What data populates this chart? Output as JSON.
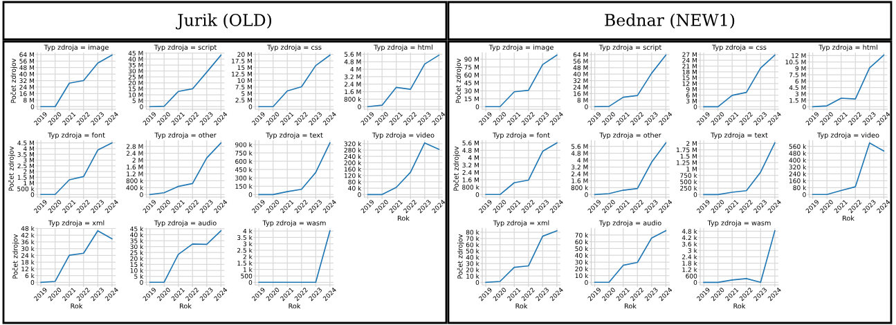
{
  "chart_data": [
    {
      "type": "other",
      "title": "Jurik (OLD)"
    },
    {
      "type": "line",
      "title": "Typ zdroja = image",
      "ylabel": "Počet zdrojov",
      "categories": [
        "2019",
        "2020",
        "2021",
        "2022",
        "2023",
        "2024"
      ],
      "series": [
        {
          "color": "#1f77b4",
          "values": [
            0,
            0,
            28800000,
            32000000,
            53400000,
            63300000
          ]
        }
      ],
      "ylim": [
        -3200000,
        66400000
      ],
      "yticks": [
        0,
        {
          "value": 8000000,
          "label": "8 M"
        },
        {
          "value": 16000000,
          "label": "16 M"
        },
        {
          "value": 24000000,
          "label": "24 M"
        },
        {
          "value": 32000000,
          "label": "32 M"
        },
        {
          "value": 40000000,
          "label": "40 M"
        },
        {
          "value": 48000000,
          "label": "48 M"
        },
        {
          "value": 56000000,
          "label": "56 M"
        },
        {
          "value": 64000000,
          "label": "64 M"
        }
      ],
      "grid": true
    },
    {
      "type": "line",
      "title": "Typ zdroja = script",
      "categories": [
        "2019",
        "2020",
        "2021",
        "2022",
        "2023",
        "2024"
      ],
      "series": [
        {
          "color": "#1f77b4",
          "values": [
            0,
            300000,
            12800000,
            15000000,
            29000000,
            43300000
          ]
        }
      ],
      "ylim": [
        -2200000,
        45500000
      ],
      "yticks": [
        0,
        {
          "value": 5000000,
          "label": "5 M"
        },
        {
          "value": 10000000,
          "label": "10 M"
        },
        {
          "value": 15000000,
          "label": "15 M"
        },
        {
          "value": 20000000,
          "label": "20 M"
        },
        {
          "value": 25000000,
          "label": "25 M"
        },
        {
          "value": 30000000,
          "label": "30 M"
        },
        {
          "value": 35000000,
          "label": "35 M"
        },
        {
          "value": 40000000,
          "label": "40 M"
        },
        {
          "value": 45000000,
          "label": "45 M"
        }
      ],
      "grid": true
    },
    {
      "type": "line",
      "title": "Typ zdroja = css",
      "categories": [
        "2019",
        "2020",
        "2021",
        "2022",
        "2023",
        "2024"
      ],
      "series": [
        {
          "color": "#1f77b4",
          "values": [
            0,
            0,
            6000000,
            7600000,
            15700000,
            19700000
          ]
        }
      ],
      "ylim": [
        -1000000,
        20700000
      ],
      "yticks": [
        0,
        {
          "value": 2500000,
          "label": "2.5 M"
        },
        {
          "value": 5000000,
          "label": "5 M"
        },
        {
          "value": 7500000,
          "label": "7.5 M"
        },
        {
          "value": 10000000,
          "label": "10 M"
        },
        {
          "value": 12500000,
          "label": "12.5 M"
        },
        {
          "value": 15000000,
          "label": "15 M"
        },
        {
          "value": 17500000,
          "label": "17.5 M"
        },
        {
          "value": 20000000,
          "label": "20 M"
        }
      ],
      "grid": true
    },
    {
      "type": "line",
      "title": "Typ zdroja = html",
      "categories": [
        "2019",
        "2020",
        "2021",
        "2022",
        "2023",
        "2024"
      ],
      "series": [
        {
          "color": "#1f77b4",
          "values": [
            0,
            150000,
            2060000,
            1850000,
            4550000,
            5500000
          ]
        }
      ],
      "ylim": [
        -280000,
        5780000
      ],
      "yticks": [
        0,
        {
          "value": 800000,
          "label": "800 k"
        },
        {
          "value": 1600000,
          "label": "1.6 M"
        },
        {
          "value": 2400000,
          "label": "2.4 M"
        },
        {
          "value": 3200000,
          "label": "3.2 M"
        },
        {
          "value": 4000000,
          "label": "4 M"
        },
        {
          "value": 4800000,
          "label": "4.8 M"
        },
        {
          "value": 5600000,
          "label": "5.6 M"
        }
      ],
      "grid": true
    },
    {
      "type": "line",
      "title": "Typ zdroja = font",
      "ylabel": "Počet zdrojov",
      "categories": [
        "2019",
        "2020",
        "2021",
        "2022",
        "2023",
        "2024"
      ],
      "series": [
        {
          "color": "#1f77b4",
          "values": [
            0,
            0,
            1280000,
            1560000,
            3870000,
            4500000
          ]
        }
      ],
      "ylim": [
        -225000,
        4720000
      ],
      "yticks": [
        0,
        {
          "value": 500000,
          "label": "500 k"
        },
        {
          "value": 1000000,
          "label": "1 M"
        },
        {
          "value": 1500000,
          "label": "1.5 M"
        },
        {
          "value": 2000000,
          "label": "2 M"
        },
        {
          "value": 2500000,
          "label": "2.5 M"
        },
        {
          "value": 3000000,
          "label": "3 M"
        },
        {
          "value": 3500000,
          "label": "3.5 M"
        },
        {
          "value": 4000000,
          "label": "4 M"
        },
        {
          "value": 4500000,
          "label": "4.5 M"
        }
      ],
      "grid": true
    },
    {
      "type": "line",
      "title": "Typ zdroja = other",
      "categories": [
        "2019",
        "2020",
        "2021",
        "2022",
        "2023",
        "2024"
      ],
      "series": [
        {
          "color": "#1f77b4",
          "values": [
            0,
            100000,
            470000,
            640000,
            2130000,
            3000000
          ]
        }
      ],
      "ylim": [
        -150000,
        3150000
      ],
      "yticks": [
        0,
        {
          "value": 400000,
          "label": "400 k"
        },
        {
          "value": 800000,
          "label": "800 k"
        },
        {
          "value": 1200000,
          "label": "1.2 M"
        },
        {
          "value": 1600000,
          "label": "1.6 M"
        },
        {
          "value": 2000000,
          "label": "2 M"
        },
        {
          "value": 2400000,
          "label": "2.4 M"
        },
        {
          "value": 2800000,
          "label": "2.8 M"
        }
      ],
      "grid": true
    },
    {
      "type": "line",
      "title": "Typ zdroja = text",
      "categories": [
        "2019",
        "2020",
        "2021",
        "2022",
        "2023",
        "2024"
      ],
      "series": [
        {
          "color": "#1f77b4",
          "values": [
            0,
            0,
            52000,
            94000,
            398000,
            931000
          ]
        }
      ],
      "ylim": [
        -46000,
        977000
      ],
      "yticks": [
        0,
        {
          "value": 150000,
          "label": "150 k"
        },
        {
          "value": 300000,
          "label": "300 k"
        },
        {
          "value": 450000,
          "label": "450 k"
        },
        {
          "value": 600000,
          "label": "600 k"
        },
        {
          "value": 750000,
          "label": "750 k"
        },
        {
          "value": 900000,
          "label": "900 k"
        }
      ],
      "grid": true
    },
    {
      "type": "line",
      "title": "Typ zdroja = video",
      "xlabel": "Rok",
      "categories": [
        "2019",
        "2020",
        "2021",
        "2022",
        "2023",
        "2024"
      ],
      "series": [
        {
          "color": "#1f77b4",
          "values": [
            0,
            0,
            45000,
            140000,
            325000,
            285000
          ]
        }
      ],
      "ylim": [
        -16000,
        341000
      ],
      "yticks": [
        0,
        {
          "value": 40000,
          "label": "40 k"
        },
        {
          "value": 80000,
          "label": "80 k"
        },
        {
          "value": 120000,
          "label": "120 k"
        },
        {
          "value": 160000,
          "label": "160 k"
        },
        {
          "value": 200000,
          "label": "200 k"
        },
        {
          "value": 240000,
          "label": "240 k"
        },
        {
          "value": 280000,
          "label": "280 k"
        },
        {
          "value": 320000,
          "label": "320 k"
        }
      ],
      "grid": true
    },
    {
      "type": "line",
      "title": "Typ zdroja = xml",
      "xlabel": "Rok",
      "ylabel": "Počet zdrojov",
      "categories": [
        "2019",
        "2020",
        "2021",
        "2022",
        "2023",
        "2024"
      ],
      "series": [
        {
          "color": "#1f77b4",
          "values": [
            0,
            800,
            24100,
            25900,
            45900,
            38800
          ]
        }
      ],
      "ylim": [
        -2300,
        48200
      ],
      "yticks": [
        0,
        {
          "value": 6000,
          "label": "6 k"
        },
        {
          "value": 12000,
          "label": "12 k"
        },
        {
          "value": 18000,
          "label": "18 k"
        },
        {
          "value": 24000,
          "label": "24 k"
        },
        {
          "value": 30000,
          "label": "30 k"
        },
        {
          "value": 36000,
          "label": "36 k"
        },
        {
          "value": 42000,
          "label": "42 k"
        },
        {
          "value": 48000,
          "label": "48 k"
        }
      ],
      "grid": true
    },
    {
      "type": "line",
      "title": "Typ zdroja = audio",
      "xlabel": "Rok",
      "categories": [
        "2019",
        "2020",
        "2021",
        "2022",
        "2023",
        "2024"
      ],
      "series": [
        {
          "color": "#1f77b4",
          "values": [
            0,
            0,
            23500,
            32200,
            31900,
            43300
          ]
        }
      ],
      "ylim": [
        -2200,
        45500
      ],
      "yticks": [
        0,
        {
          "value": 5000,
          "label": "5 k"
        },
        {
          "value": 10000,
          "label": "10 k"
        },
        {
          "value": 15000,
          "label": "15 k"
        },
        {
          "value": 20000,
          "label": "20 k"
        },
        {
          "value": 25000,
          "label": "25 k"
        },
        {
          "value": 30000,
          "label": "30 k"
        },
        {
          "value": 35000,
          "label": "35 k"
        },
        {
          "value": 40000,
          "label": "40 k"
        },
        {
          "value": 45000,
          "label": "45 k"
        }
      ],
      "grid": true
    },
    {
      "type": "line",
      "title": "Typ zdroja = wasm",
      "xlabel": "Rok",
      "categories": [
        "2019",
        "2020",
        "2021",
        "2022",
        "2023",
        "2024"
      ],
      "series": [
        {
          "color": "#1f77b4",
          "values": [
            0,
            0,
            0,
            0,
            0,
            4020
          ]
        }
      ],
      "ylim": [
        -200,
        4220
      ],
      "yticks": [
        0,
        500,
        {
          "value": 1000,
          "label": "1 k"
        },
        {
          "value": 1500,
          "label": "1.5 k"
        },
        {
          "value": 2000,
          "label": "2 k"
        },
        {
          "value": 2500,
          "label": "2.5 k"
        },
        {
          "value": 3000,
          "label": "3 k"
        },
        {
          "value": 3500,
          "label": "3.5 k"
        },
        {
          "value": 4000,
          "label": "4 k"
        }
      ],
      "grid": true
    },
    {
      "type": "other",
      "title": "Bednar (NEW1)"
    },
    {
      "type": "line",
      "title": "Typ zdroja = image",
      "ylabel": "Počet zdrojov",
      "categories": [
        "2019",
        "2020",
        "2021",
        "2022",
        "2023",
        "2024"
      ],
      "series": [
        {
          "color": "#1f77b4",
          "values": [
            0,
            0,
            28200000,
            30900000,
            79700000,
            97600000
          ]
        }
      ],
      "ylim": [
        -4900000,
        102500000
      ],
      "yticks": [
        0,
        {
          "value": 15000000,
          "label": "15 M"
        },
        {
          "value": 30000000,
          "label": "30 M"
        },
        {
          "value": 45000000,
          "label": "45 M"
        },
        {
          "value": 60000000,
          "label": "60 M"
        },
        {
          "value": 75000000,
          "label": "75 M"
        },
        {
          "value": 90000000,
          "label": "90 M"
        }
      ],
      "grid": true
    },
    {
      "type": "line",
      "title": "Typ zdroja = script",
      "categories": [
        "2019",
        "2020",
        "2021",
        "2022",
        "2023",
        "2024"
      ],
      "series": [
        {
          "color": "#1f77b4",
          "values": [
            0,
            300000,
            11600000,
            13700000,
            41100000,
            63300000
          ]
        }
      ],
      "ylim": [
        -3200000,
        66500000
      ],
      "yticks": [
        0,
        {
          "value": 8000000,
          "label": "8 M"
        },
        {
          "value": 16000000,
          "label": "16 M"
        },
        {
          "value": 24000000,
          "label": "24 M"
        },
        {
          "value": 32000000,
          "label": "32 M"
        },
        {
          "value": 40000000,
          "label": "40 M"
        },
        {
          "value": 48000000,
          "label": "48 M"
        },
        {
          "value": 56000000,
          "label": "56 M"
        },
        {
          "value": 64000000,
          "label": "64 M"
        }
      ],
      "grid": true
    },
    {
      "type": "line",
      "title": "Typ zdroja = css",
      "categories": [
        "2019",
        "2020",
        "2021",
        "2022",
        "2023",
        "2024"
      ],
      "series": [
        {
          "color": "#1f77b4",
          "values": [
            0,
            0,
            5900000,
            7400000,
            20000000,
            26700000
          ]
        }
      ],
      "ylim": [
        -1300000,
        28000000
      ],
      "yticks": [
        0,
        {
          "value": 3000000,
          "label": "3 M"
        },
        {
          "value": 6000000,
          "label": "6 M"
        },
        {
          "value": 9000000,
          "label": "9 M"
        },
        {
          "value": 12000000,
          "label": "12 M"
        },
        {
          "value": 15000000,
          "label": "15 M"
        },
        {
          "value": 18000000,
          "label": "18 M"
        },
        {
          "value": 21000000,
          "label": "21 M"
        },
        {
          "value": 24000000,
          "label": "24 M"
        },
        {
          "value": 27000000,
          "label": "27 M"
        }
      ],
      "grid": true
    },
    {
      "type": "line",
      "title": "Typ zdroja = html",
      "categories": [
        "2019",
        "2020",
        "2021",
        "2022",
        "2023",
        "2024"
      ],
      "series": [
        {
          "color": "#1f77b4",
          "values": [
            0,
            200000,
            2000000,
            1800000,
            9100000,
            12100000
          ]
        }
      ],
      "ylim": [
        -600000,
        12700000
      ],
      "yticks": [
        0,
        {
          "value": 1500000,
          "label": "1.5 M"
        },
        {
          "value": 3000000,
          "label": "3 M"
        },
        {
          "value": 4500000,
          "label": "4.5 M"
        },
        {
          "value": 6000000,
          "label": "6 M"
        },
        {
          "value": 7500000,
          "label": "7.5 M"
        },
        {
          "value": 9000000,
          "label": "9 M"
        },
        {
          "value": 10500000,
          "label": "10.5 M"
        },
        {
          "value": 12000000,
          "label": "12 M"
        }
      ],
      "grid": true
    },
    {
      "type": "line",
      "title": "Typ zdroja = font",
      "ylabel": "Počet zdrojov",
      "categories": [
        "2019",
        "2020",
        "2021",
        "2022",
        "2023",
        "2024"
      ],
      "series": [
        {
          "color": "#1f77b4",
          "values": [
            0,
            0,
            1280000,
            1560000,
            4690000,
            5600000
          ]
        }
      ],
      "ylim": [
        -280000,
        5880000
      ],
      "yticks": [
        0,
        {
          "value": 800000,
          "label": "800 k"
        },
        {
          "value": 1600000,
          "label": "1.6 M"
        },
        {
          "value": 2400000,
          "label": "2.4 M"
        },
        {
          "value": 3200000,
          "label": "3.2 M"
        },
        {
          "value": 4000000,
          "label": "4 M"
        },
        {
          "value": 4800000,
          "label": "4.8 M"
        },
        {
          "value": 5600000,
          "label": "5.6 M"
        }
      ],
      "grid": true
    },
    {
      "type": "line",
      "title": "Typ zdroja = other",
      "categories": [
        "2019",
        "2020",
        "2021",
        "2022",
        "2023",
        "2024"
      ],
      "series": [
        {
          "color": "#1f77b4",
          "values": [
            0,
            100000,
            500000,
            700000,
            3760000,
            6000000
          ]
        }
      ],
      "ylim": [
        -300000,
        6300000
      ],
      "yticks": [
        0,
        {
          "value": 800000,
          "label": "800 k"
        },
        {
          "value": 1600000,
          "label": "1.6 M"
        },
        {
          "value": 2400000,
          "label": "2.4 M"
        },
        {
          "value": 3200000,
          "label": "3.2 M"
        },
        {
          "value": 4000000,
          "label": "4 M"
        },
        {
          "value": 4800000,
          "label": "4.8 M"
        },
        {
          "value": 5600000,
          "label": "5.6 M"
        }
      ],
      "grid": true
    },
    {
      "type": "line",
      "title": "Typ zdroja = text",
      "categories": [
        "2019",
        "2020",
        "2021",
        "2022",
        "2023",
        "2024"
      ],
      "series": [
        {
          "color": "#1f77b4",
          "values": [
            0,
            0,
            90000,
            150000,
            875000,
            2020000
          ]
        }
      ],
      "ylim": [
        -100000,
        2120000
      ],
      "yticks": [
        0,
        {
          "value": 250000,
          "label": "250 k"
        },
        {
          "value": 500000,
          "label": "500 k"
        },
        {
          "value": 750000,
          "label": "750 k"
        },
        {
          "value": 1000000,
          "label": "1 M"
        },
        {
          "value": 1250000,
          "label": "1.25 M"
        },
        {
          "value": 1500000,
          "label": "1.5 M"
        },
        {
          "value": 1750000,
          "label": "1.75 M"
        },
        {
          "value": 2000000,
          "label": "2 M"
        }
      ],
      "grid": true
    },
    {
      "type": "line",
      "title": "Typ zdroja = video",
      "xlabel": "Rok",
      "categories": [
        "2019",
        "2020",
        "2021",
        "2022",
        "2023",
        "2024"
      ],
      "series": [
        {
          "color": "#1f77b4",
          "values": [
            0,
            0,
            47000,
            90000,
            600000,
            506000
          ]
        }
      ],
      "ylim": [
        -30000,
        630000
      ],
      "yticks": [
        0,
        {
          "value": 80000,
          "label": "80 k"
        },
        {
          "value": 160000,
          "label": "160 k"
        },
        {
          "value": 240000,
          "label": "240 k"
        },
        {
          "value": 320000,
          "label": "320 k"
        },
        {
          "value": 400000,
          "label": "400 k"
        },
        {
          "value": 480000,
          "label": "480 k"
        },
        {
          "value": 560000,
          "label": "560 k"
        }
      ],
      "grid": true
    },
    {
      "type": "line",
      "title": "Typ zdroja = xml",
      "xlabel": "Rok",
      "ylabel": "Počet zdrojov",
      "categories": [
        "2019",
        "2020",
        "2021",
        "2022",
        "2023",
        "2024"
      ],
      "series": [
        {
          "color": "#1f77b4",
          "values": [
            0,
            1400,
            23900,
            26200,
            73600,
            82300
          ]
        }
      ],
      "ylim": [
        -4100,
        86400
      ],
      "yticks": [
        0,
        {
          "value": 10000,
          "label": "10 k"
        },
        {
          "value": 20000,
          "label": "20 k"
        },
        {
          "value": 30000,
          "label": "30 k"
        },
        {
          "value": 40000,
          "label": "40 k"
        },
        {
          "value": 50000,
          "label": "50 k"
        },
        {
          "value": 60000,
          "label": "60 k"
        },
        {
          "value": 70000,
          "label": "70 k"
        },
        {
          "value": 80000,
          "label": "80 k"
        }
      ],
      "grid": true
    },
    {
      "type": "line",
      "title": "Typ zdroja = audio",
      "xlabel": "Rok",
      "categories": [
        "2019",
        "2020",
        "2021",
        "2022",
        "2023",
        "2024"
      ],
      "series": [
        {
          "color": "#1f77b4",
          "values": [
            0,
            0,
            25200,
            29500,
            65700,
            76400
          ]
        }
      ],
      "ylim": [
        -3800,
        80200
      ],
      "yticks": [
        0,
        {
          "value": 10000,
          "label": "10 k"
        },
        {
          "value": 20000,
          "label": "20 k"
        },
        {
          "value": 30000,
          "label": "30 k"
        },
        {
          "value": 40000,
          "label": "40 k"
        },
        {
          "value": 50000,
          "label": "50 k"
        },
        {
          "value": 60000,
          "label": "60 k"
        },
        {
          "value": 70000,
          "label": "70 k"
        }
      ],
      "grid": true
    },
    {
      "type": "line",
      "title": "Typ zdroja = wasm",
      "xlabel": "Rok",
      "categories": [
        "2019",
        "2020",
        "2021",
        "2022",
        "2023",
        "2024"
      ],
      "series": [
        {
          "color": "#1f77b4",
          "values": [
            0,
            0,
            220,
            350,
            0,
            4850
          ]
        }
      ],
      "ylim": [
        -240,
        5090
      ],
      "yticks": [
        0,
        600,
        {
          "value": 1200,
          "label": "1.2 k"
        },
        {
          "value": 1800,
          "label": "1.8 k"
        },
        {
          "value": 2400,
          "label": "2.4 k"
        },
        {
          "value": 3000,
          "label": "3 k"
        },
        {
          "value": 3600,
          "label": "3.6 k"
        },
        {
          "value": 4200,
          "label": "4.2 k"
        },
        {
          "value": 4800,
          "label": "4.8 k"
        }
      ],
      "grid": true
    }
  ]
}
